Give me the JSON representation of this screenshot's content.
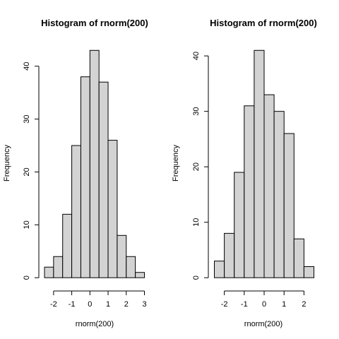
{
  "chart_data": [
    {
      "type": "bar",
      "title": "Histogram of rnorm(200)",
      "xlabel": "rnorm(200)",
      "ylabel": "Frequency",
      "bins": [
        {
          "x0": -2.5,
          "x1": -2.0,
          "value": 2
        },
        {
          "x0": -2.0,
          "x1": -1.5,
          "value": 4
        },
        {
          "x0": -1.5,
          "x1": -1.0,
          "value": 12
        },
        {
          "x0": -1.0,
          "x1": -0.5,
          "value": 25
        },
        {
          "x0": -0.5,
          "x1": 0.0,
          "value": 38
        },
        {
          "x0": 0.0,
          "x1": 0.5,
          "value": 43
        },
        {
          "x0": 0.5,
          "x1": 1.0,
          "value": 37
        },
        {
          "x0": 1.0,
          "x1": 1.5,
          "value": 26
        },
        {
          "x0": 1.5,
          "x1": 2.0,
          "value": 8
        },
        {
          "x0": 2.0,
          "x1": 2.5,
          "value": 4
        },
        {
          "x0": 2.5,
          "x1": 3.0,
          "value": 1
        }
      ],
      "xlim": [
        -2.5,
        3.0
      ],
      "ylim": [
        0,
        43
      ],
      "xticks": [
        -2,
        -1,
        0,
        1,
        2,
        3
      ],
      "xtick_labels": [
        "-2",
        "-1",
        "0",
        "1",
        "2",
        "3"
      ],
      "yticks": [
        0,
        10,
        20,
        30,
        40
      ],
      "ytick_labels": [
        "0",
        "10",
        "20",
        "30",
        "40"
      ],
      "grid": false
    },
    {
      "type": "bar",
      "title": "Histogram of rnorm(200)",
      "xlabel": "rnorm(200)",
      "ylabel": "Frequency",
      "bins": [
        {
          "x0": -2.5,
          "x1": -2.0,
          "value": 3
        },
        {
          "x0": -2.0,
          "x1": -1.5,
          "value": 8
        },
        {
          "x0": -1.5,
          "x1": -1.0,
          "value": 19
        },
        {
          "x0": -1.0,
          "x1": -0.5,
          "value": 31
        },
        {
          "x0": -0.5,
          "x1": 0.0,
          "value": 41
        },
        {
          "x0": 0.0,
          "x1": 0.5,
          "value": 33
        },
        {
          "x0": 0.5,
          "x1": 1.0,
          "value": 30
        },
        {
          "x0": 1.0,
          "x1": 1.5,
          "value": 26
        },
        {
          "x0": 1.5,
          "x1": 2.0,
          "value": 7
        },
        {
          "x0": 2.0,
          "x1": 2.5,
          "value": 2
        }
      ],
      "xlim": [
        -2.5,
        2.5
      ],
      "ylim": [
        0,
        41
      ],
      "xticks": [
        -2,
        -1,
        0,
        1,
        2
      ],
      "xtick_labels": [
        "-2",
        "-1",
        "0",
        "1",
        "2"
      ],
      "yticks": [
        0,
        10,
        20,
        30,
        40
      ],
      "ytick_labels": [
        "0",
        "10",
        "20",
        "30",
        "40"
      ],
      "grid": false
    }
  ]
}
